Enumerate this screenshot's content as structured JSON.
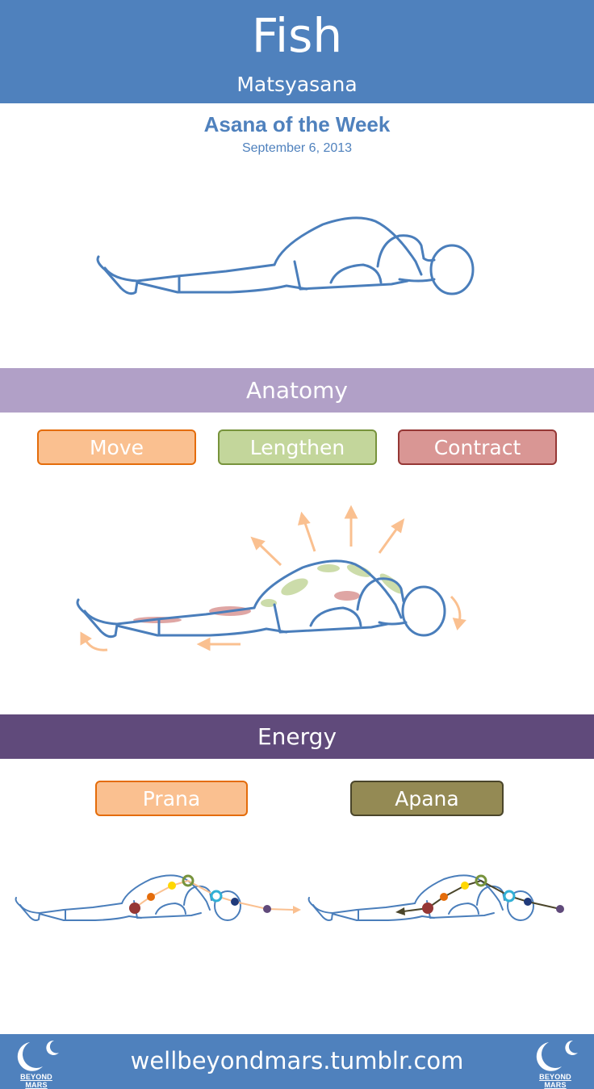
{
  "header": {
    "title": "Fish",
    "subtitle": "Matsyasana"
  },
  "intro": {
    "series": "Asana of the Week",
    "date": "September 6, 2013"
  },
  "anatomy": {
    "heading": "Anatomy",
    "legend": [
      {
        "label": "Move",
        "color": "#fac090",
        "border": "#e46c0a"
      },
      {
        "label": "Lengthen",
        "color": "#c3d69b",
        "border": "#77933c"
      },
      {
        "label": "Contract",
        "color": "#d99694",
        "border": "#953735"
      }
    ]
  },
  "energy": {
    "heading": "Energy",
    "legend": [
      {
        "label": "Prana",
        "color": "#fac090",
        "border": "#e46c0a"
      },
      {
        "label": "Apana",
        "color": "#948a54",
        "border": "#4a452a"
      }
    ]
  },
  "footer": {
    "url": "wellbeyondmars.tumblr.com",
    "logo_text": "BEYOND MARS"
  },
  "colors": {
    "header_bg": "#4f81bd",
    "outline": "#4a7ebb",
    "chakras": [
      "#953735",
      "#e46c0a",
      "#ffd700",
      "#77933c",
      "#31b0d5",
      "#1f3a7a",
      "#604a7b"
    ]
  }
}
